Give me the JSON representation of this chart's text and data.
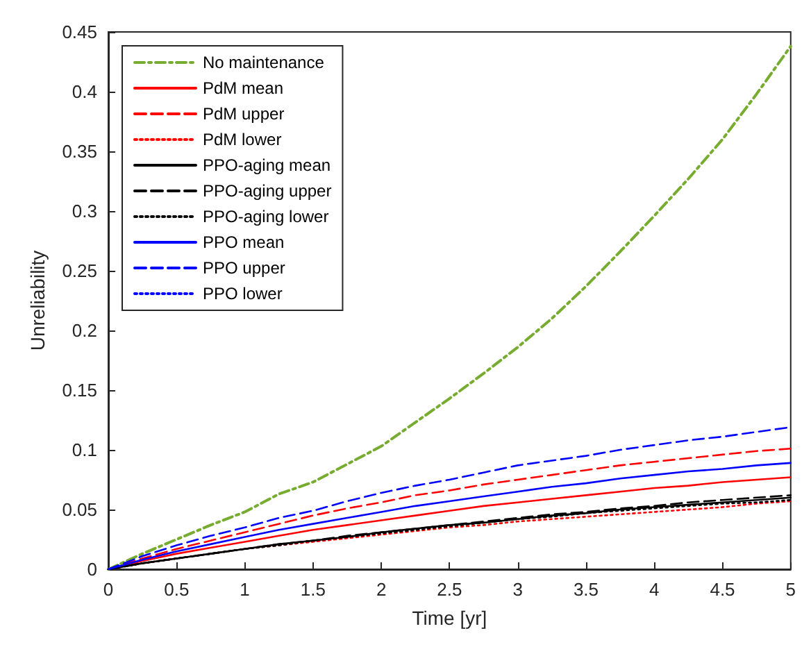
{
  "chart_data": {
    "type": "line",
    "xlabel": "Time [yr]",
    "ylabel": "Unreliability",
    "xlim": [
      0,
      5
    ],
    "ylim": [
      0,
      0.45
    ],
    "xticks": [
      0,
      0.5,
      1,
      1.5,
      2,
      2.5,
      3,
      3.5,
      4,
      4.5,
      5
    ],
    "yticks": [
      0,
      0.05,
      0.1,
      0.15,
      0.2,
      0.25,
      0.3,
      0.35,
      0.4,
      0.45
    ],
    "grid": false,
    "legend": "top left",
    "marker": "none",
    "x": [
      0,
      0.25,
      0.5,
      0.75,
      1,
      1.25,
      1.5,
      1.75,
      2,
      2.25,
      2.5,
      2.75,
      3,
      3.25,
      3.5,
      3.75,
      4,
      4.25,
      4.5,
      4.75,
      5
    ],
    "series": [
      {
        "name": "No maintenance",
        "color": "#77ac30",
        "line_style": "dashdot",
        "values": [
          0,
          0.013,
          0.025,
          0.037,
          0.048,
          0.063,
          0.073,
          0.088,
          0.103,
          0.123,
          0.143,
          0.164,
          0.186,
          0.21,
          0.237,
          0.266,
          0.296,
          0.327,
          0.36,
          0.398,
          0.438
        ]
      },
      {
        "name": "PdM mean",
        "color": "#ff0000",
        "line_style": "solid",
        "values": [
          0,
          0.007,
          0.013,
          0.018,
          0.023,
          0.028,
          0.033,
          0.037,
          0.041,
          0.045,
          0.049,
          0.053,
          0.056,
          0.059,
          0.062,
          0.065,
          0.068,
          0.07,
          0.073,
          0.075,
          0.077
        ]
      },
      {
        "name": "PdM upper",
        "color": "#ff0000",
        "line_style": "dashed",
        "values": [
          0,
          0.009,
          0.017,
          0.024,
          0.031,
          0.038,
          0.045,
          0.051,
          0.056,
          0.062,
          0.066,
          0.071,
          0.075,
          0.079,
          0.083,
          0.087,
          0.09,
          0.093,
          0.096,
          0.099,
          0.101
        ]
      },
      {
        "name": "PdM lower",
        "color": "#ff0000",
        "line_style": "dotted",
        "values": [
          0,
          0.005,
          0.009,
          0.013,
          0.017,
          0.02,
          0.023,
          0.026,
          0.029,
          0.032,
          0.035,
          0.037,
          0.04,
          0.042,
          0.044,
          0.046,
          0.048,
          0.05,
          0.052,
          0.055,
          0.057
        ]
      },
      {
        "name": "PPO-aging mean",
        "color": "#000000",
        "line_style": "solid",
        "values": [
          0,
          0.005,
          0.009,
          0.013,
          0.017,
          0.021,
          0.024,
          0.027,
          0.031,
          0.034,
          0.037,
          0.039,
          0.042,
          0.045,
          0.047,
          0.05,
          0.052,
          0.054,
          0.056,
          0.058,
          0.06
        ]
      },
      {
        "name": "PPO-aging upper",
        "color": "#000000",
        "line_style": "dashed",
        "values": [
          0,
          0.005,
          0.009,
          0.013,
          0.017,
          0.021,
          0.024,
          0.028,
          0.031,
          0.034,
          0.037,
          0.04,
          0.043,
          0.046,
          0.048,
          0.051,
          0.053,
          0.056,
          0.058,
          0.06,
          0.062
        ]
      },
      {
        "name": "PPO-aging lower",
        "color": "#000000",
        "line_style": "dotted",
        "values": [
          0,
          0.005,
          0.009,
          0.013,
          0.017,
          0.02,
          0.024,
          0.027,
          0.03,
          0.033,
          0.036,
          0.039,
          0.042,
          0.044,
          0.047,
          0.049,
          0.051,
          0.053,
          0.055,
          0.056,
          0.058
        ]
      },
      {
        "name": "PPO mean",
        "color": "#0000ff",
        "line_style": "solid",
        "values": [
          0,
          0.008,
          0.015,
          0.021,
          0.027,
          0.033,
          0.038,
          0.043,
          0.048,
          0.053,
          0.057,
          0.061,
          0.065,
          0.069,
          0.072,
          0.076,
          0.079,
          0.082,
          0.084,
          0.087,
          0.089
        ]
      },
      {
        "name": "PPO upper",
        "color": "#0000ff",
        "line_style": "dashed",
        "values": [
          0,
          0.011,
          0.02,
          0.028,
          0.035,
          0.043,
          0.049,
          0.057,
          0.064,
          0.07,
          0.075,
          0.081,
          0.087,
          0.091,
          0.095,
          0.1,
          0.104,
          0.108,
          0.111,
          0.115,
          0.119
        ]
      },
      {
        "name": "PPO lower",
        "color": "#0000ff",
        "line_style": "dotted",
        "values": [
          null,
          null,
          null,
          null,
          null,
          null,
          null,
          null,
          null,
          null,
          null,
          null,
          null,
          null,
          null,
          null,
          null,
          null,
          null,
          null,
          null
        ]
      }
    ]
  }
}
